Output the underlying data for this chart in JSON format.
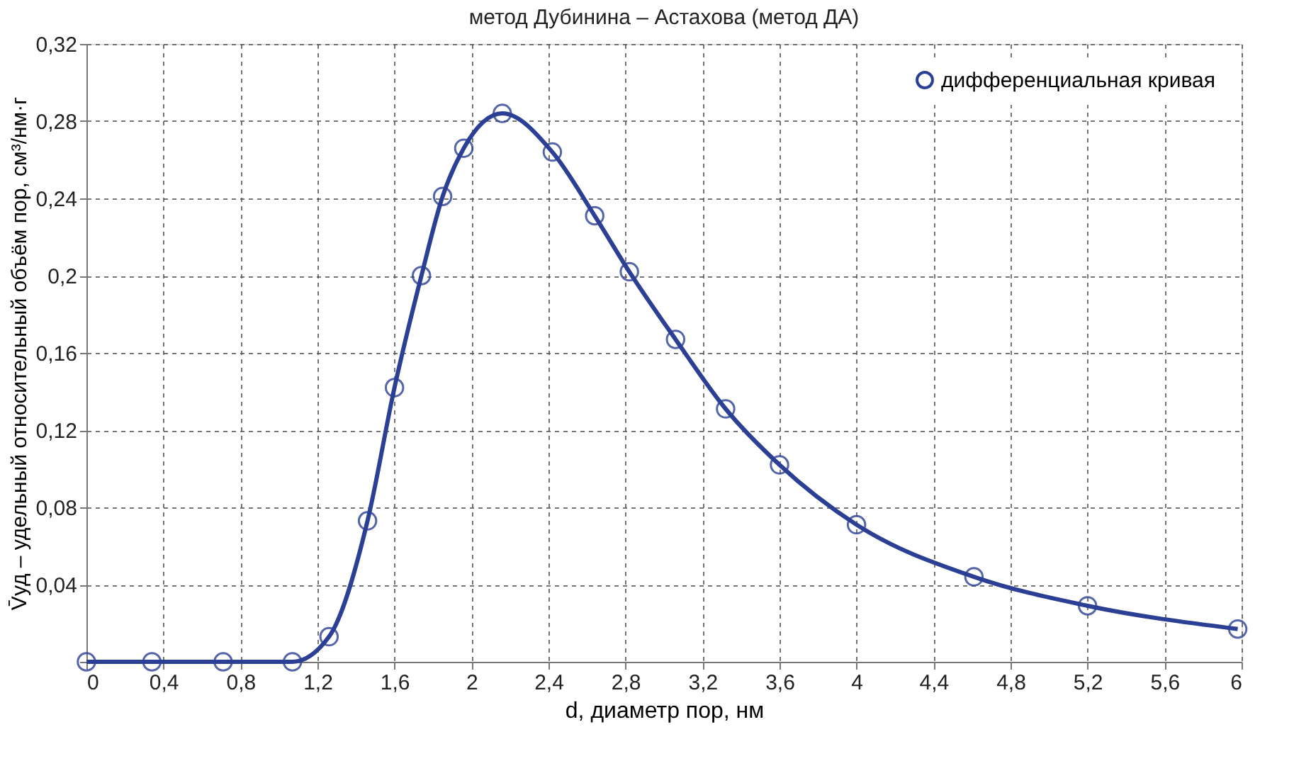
{
  "chart_data": {
    "type": "line",
    "title": "метод Дубинина – Астахова (метод ДА)",
    "xlabel": "d, диаметр пор, нм",
    "ylabel": "V̄уд – удельный относительный объём пор, см³/нм·г",
    "x": [
      0,
      0.34,
      0.71,
      1.07,
      1.26,
      1.46,
      1.6,
      1.74,
      1.85,
      1.96,
      2.16,
      2.42,
      2.64,
      2.82,
      3.06,
      3.32,
      3.6,
      4.0,
      4.61,
      5.2,
      5.98
    ],
    "series": [
      {
        "name": "дифференциальная кривая",
        "color": "#2b3f94",
        "values": [
          0,
          0,
          0,
          0,
          0.013,
          0.073,
          0.142,
          0.2,
          0.241,
          0.266,
          0.284,
          0.264,
          0.231,
          0.202,
          0.167,
          0.131,
          0.102,
          0.071,
          0.044,
          0.029,
          0.017
        ]
      }
    ],
    "xlim": [
      0,
      6
    ],
    "ylim": [
      0,
      0.32
    ],
    "xticks": [
      0,
      {
        "value": 0.4,
        "label": "0,4"
      },
      {
        "value": 0.8,
        "label": "0,8"
      },
      {
        "value": 1.2,
        "label": "1,2"
      },
      {
        "value": 1.6,
        "label": "1,6"
      },
      2,
      {
        "value": 2.4,
        "label": "2,4"
      },
      {
        "value": 2.8,
        "label": "2,8"
      },
      {
        "value": 3.2,
        "label": "3,2"
      },
      {
        "value": 3.6,
        "label": "3,6"
      },
      4,
      {
        "value": 4.4,
        "label": "4,4"
      },
      {
        "value": 4.8,
        "label": "4,8"
      },
      {
        "value": 5.2,
        "label": "5,2"
      },
      {
        "value": 5.6,
        "label": "5,6"
      },
      6
    ],
    "yticks": [
      {
        "value": 0,
        "label": null
      },
      {
        "value": 0.04,
        "label": "0,04"
      },
      {
        "value": 0.08,
        "label": "0,08"
      },
      {
        "value": 0.12,
        "label": "0,12"
      },
      {
        "value": 0.16,
        "label": "0,16"
      },
      {
        "value": 0.2,
        "label": "0,2"
      },
      {
        "value": 0.24,
        "label": "0,24"
      },
      {
        "value": 0.28,
        "label": "0,28"
      },
      {
        "value": 0.32,
        "label": "0,32"
      }
    ],
    "grid": true,
    "legend": "top right",
    "marker": "circle",
    "line_style": "solid"
  }
}
